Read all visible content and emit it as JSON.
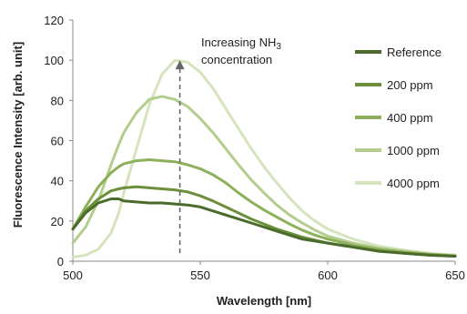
{
  "chart_data": {
    "type": "line",
    "xlabel": "Wavelength [nm]",
    "ylabel": "Fluorescence Intensity [arb. unit]",
    "xlim": [
      500,
      650
    ],
    "ylim": [
      0,
      120
    ],
    "xticks": [
      500,
      550,
      600,
      650
    ],
    "yticks": [
      0,
      20,
      40,
      60,
      80,
      100,
      120
    ],
    "grid": false,
    "legend_position": "right",
    "annotation": {
      "text_main": "Increasing NH",
      "text_sub": "3",
      "text_line2": "concentration",
      "arrow_x": 542,
      "arrow_from": 4,
      "arrow_to": 100
    },
    "x": [
      500,
      505,
      510,
      515,
      518,
      520,
      525,
      530,
      535,
      540,
      545,
      550,
      555,
      560,
      565,
      570,
      575,
      580,
      585,
      590,
      595,
      600,
      610,
      620,
      630,
      640,
      650
    ],
    "series": [
      {
        "name": "Reference",
        "color": "#4a6b2b",
        "values": [
          16,
          24,
          29,
          31,
          31,
          30,
          29.5,
          29,
          29,
          28.5,
          28,
          27,
          25,
          23,
          21,
          19,
          17,
          15,
          13,
          11,
          10,
          9,
          7,
          5,
          4,
          3,
          2.5
        ]
      },
      {
        "name": "200 ppm",
        "color": "#6b8f3a",
        "values": [
          16,
          25,
          31,
          35,
          36,
          36.5,
          37,
          36.5,
          36,
          35.5,
          34.5,
          32.5,
          30,
          27,
          24,
          21,
          18.5,
          16,
          14,
          12,
          10.5,
          9,
          7,
          5,
          4,
          3,
          2.5
        ]
      },
      {
        "name": "400 ppm",
        "color": "#8db05a",
        "values": [
          16,
          27,
          37,
          44,
          47,
          48.5,
          50,
          50.5,
          50,
          49.5,
          48,
          46,
          43,
          39,
          34,
          29.5,
          25.5,
          22,
          18.5,
          15.5,
          13,
          11,
          8,
          6,
          4.5,
          3.5,
          2.5
        ]
      },
      {
        "name": "1000 ppm",
        "color": "#b2cd8c",
        "values": [
          9,
          17,
          30,
          48,
          58,
          64,
          74,
          80.5,
          82,
          80.5,
          77,
          71,
          64,
          56,
          48,
          40.5,
          34,
          28,
          23,
          19,
          15.5,
          12.5,
          9,
          6.5,
          5,
          3.5,
          3
        ]
      },
      {
        "name": "4000 ppm",
        "color": "#d6e4bd",
        "values": [
          2,
          3,
          6,
          14,
          24,
          34,
          56,
          78,
          93,
          100,
          99,
          94,
          86,
          76,
          66,
          56,
          47,
          39,
          31.5,
          25,
          20,
          16,
          11,
          7.5,
          5.5,
          4,
          3
        ]
      }
    ]
  }
}
